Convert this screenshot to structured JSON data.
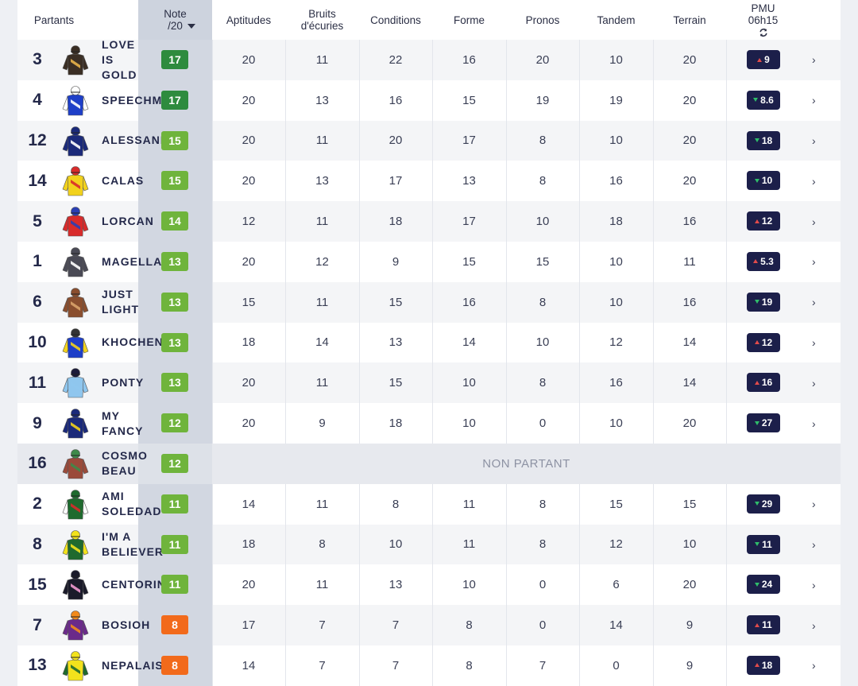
{
  "header": {
    "partants": "Partants",
    "note_line1": "Note",
    "note_line2": "/20",
    "aptitudes": "Aptitudes",
    "bruits_line1": "Bruits",
    "bruits_line2": "d'écuries",
    "conditions": "Conditions",
    "forme": "Forme",
    "pronos": "Pronos",
    "tandem": "Tandem",
    "terrain": "Terrain",
    "pmu_line1": "PMU",
    "pmu_line2": "06h15",
    "refresh_icon": "refresh-icon"
  },
  "non_partant_label": "NON PARTANT",
  "colors": {
    "note_dark_green": "#2e8b3e",
    "note_green": "#6fb43c",
    "note_orange": "#f26a1b",
    "cote_bg": "#1c1f4a",
    "trend_up": "#e24b4b",
    "trend_down": "#2fbd6a"
  },
  "rows": [
    {
      "num": "3",
      "name": "LOVE\nIS\nGOLD",
      "note": "17",
      "note_color": "#2e8b3e",
      "aptitudes": "20",
      "bruits": "11",
      "conditions": "22",
      "forme": "16",
      "pronos": "20",
      "tandem": "10",
      "terrain": "20",
      "cote": "9",
      "trend": "up",
      "silks": {
        "body": "#3a2e24",
        "pattern": "#e8b24a",
        "sleeve": "#3a2e24",
        "cap": "#3a2e24"
      }
    },
    {
      "num": "4",
      "name": "SPEECHMAKER",
      "note": "17",
      "note_color": "#2e8b3e",
      "aptitudes": "20",
      "bruits": "13",
      "conditions": "16",
      "forme": "15",
      "pronos": "19",
      "tandem": "19",
      "terrain": "20",
      "cote": "8.6",
      "trend": "down",
      "silks": {
        "body": "#1e3fc8",
        "pattern": "#ffffff",
        "sleeve": "#ffffff",
        "cap": "#ffffff"
      }
    },
    {
      "num": "12",
      "name": "ALESSANDRO",
      "note": "15",
      "note_color": "#6fb43c",
      "aptitudes": "20",
      "bruits": "11",
      "conditions": "20",
      "forme": "17",
      "pronos": "8",
      "tandem": "10",
      "terrain": "20",
      "cote": "18",
      "trend": "down",
      "silks": {
        "body": "#1b2a7a",
        "pattern": "#ffffff",
        "sleeve": "#1b2a7a",
        "cap": "#1b2a7a"
      }
    },
    {
      "num": "14",
      "name": "CALAS",
      "note": "15",
      "note_color": "#6fb43c",
      "aptitudes": "20",
      "bruits": "13",
      "conditions": "17",
      "forme": "13",
      "pronos": "8",
      "tandem": "16",
      "terrain": "20",
      "cote": "10",
      "trend": "down",
      "silks": {
        "body": "#f2d21c",
        "pattern": "#d82b2b",
        "sleeve": "#f2d21c",
        "cap": "#d82b2b"
      }
    },
    {
      "num": "5",
      "name": "LORCAN",
      "note": "14",
      "note_color": "#6fb43c",
      "aptitudes": "12",
      "bruits": "11",
      "conditions": "18",
      "forme": "17",
      "pronos": "10",
      "tandem": "18",
      "terrain": "16",
      "cote": "12",
      "trend": "up",
      "silks": {
        "body": "#d82b2b",
        "pattern": "#2a3fb4",
        "sleeve": "#d82b2b",
        "cap": "#2a3fb4"
      }
    },
    {
      "num": "1",
      "name": "MAGELLAN",
      "note": "13",
      "note_color": "#6fb43c",
      "aptitudes": "20",
      "bruits": "12",
      "conditions": "9",
      "forme": "15",
      "pronos": "15",
      "tandem": "10",
      "terrain": "11",
      "cote": "5.3",
      "trend": "up",
      "silks": {
        "body": "#4a4a55",
        "pattern": "#ffffff",
        "sleeve": "#4a4a55",
        "cap": "#4a4a55"
      }
    },
    {
      "num": "6",
      "name": "JUST\nLIGHT",
      "note": "13",
      "note_color": "#6fb43c",
      "aptitudes": "15",
      "bruits": "11",
      "conditions": "15",
      "forme": "16",
      "pronos": "8",
      "tandem": "10",
      "terrain": "16",
      "cote": "19",
      "trend": "down",
      "silks": {
        "body": "#8a4e2e",
        "pattern": "#d9a36a",
        "sleeve": "#8a4e2e",
        "cap": "#8a4e2e"
      }
    },
    {
      "num": "10",
      "name": "KHOCHENKO",
      "note": "13",
      "note_color": "#6fb43c",
      "aptitudes": "18",
      "bruits": "14",
      "conditions": "13",
      "forme": "14",
      "pronos": "10",
      "tandem": "12",
      "terrain": "14",
      "cote": "12",
      "trend": "up",
      "silks": {
        "body": "#1e3fc8",
        "pattern": "#f2d21c",
        "sleeve": "#f2d21c",
        "cap": "#333333"
      }
    },
    {
      "num": "11",
      "name": "PONTY",
      "note": "13",
      "note_color": "#6fb43c",
      "aptitudes": "20",
      "bruits": "11",
      "conditions": "15",
      "forme": "10",
      "pronos": "8",
      "tandem": "16",
      "terrain": "14",
      "cote": "16",
      "trend": "up",
      "silks": {
        "body": "#8fc6ee",
        "pattern": "#8fc6ee",
        "sleeve": "#8fc6ee",
        "cap": "#1b1b3a"
      }
    },
    {
      "num": "9",
      "name": "MY\nFANCY",
      "note": "12",
      "note_color": "#6fb43c",
      "aptitudes": "20",
      "bruits": "9",
      "conditions": "18",
      "forme": "10",
      "pronos": "0",
      "tandem": "10",
      "terrain": "20",
      "cote": "27",
      "trend": "down",
      "silks": {
        "body": "#1b2a7a",
        "pattern": "#f2d21c",
        "sleeve": "#1b2a7a",
        "cap": "#1b2a7a"
      }
    },
    {
      "num": "16",
      "name": "COSMO\nBEAU",
      "note": "12",
      "note_color": "#6fb43c",
      "non_partant": true,
      "silks": {
        "body": "#9a4a3a",
        "pattern": "#3e8a4a",
        "sleeve": "#9a4a3a",
        "cap": "#3e8a4a"
      }
    },
    {
      "num": "2",
      "name": "AMI\nSOLEDAD",
      "note": "11",
      "note_color": "#6fb43c",
      "aptitudes": "14",
      "bruits": "11",
      "conditions": "8",
      "forme": "11",
      "pronos": "8",
      "tandem": "15",
      "terrain": "15",
      "cote": "29",
      "trend": "down",
      "silks": {
        "body": "#1f6a2e",
        "pattern": "#d82b2b",
        "sleeve": "#ffffff",
        "cap": "#1f6a2e"
      }
    },
    {
      "num": "8",
      "name": "I'M A\nBELIEVER",
      "note": "11",
      "note_color": "#6fb43c",
      "aptitudes": "18",
      "bruits": "8",
      "conditions": "10",
      "forme": "11",
      "pronos": "8",
      "tandem": "12",
      "terrain": "10",
      "cote": "11",
      "trend": "down",
      "silks": {
        "body": "#1f6a2e",
        "pattern": "#f2e21c",
        "sleeve": "#f2e21c",
        "cap": "#f2e21c"
      }
    },
    {
      "num": "15",
      "name": "CENTORINO",
      "note": "11",
      "note_color": "#6fb43c",
      "aptitudes": "20",
      "bruits": "11",
      "conditions": "13",
      "forme": "10",
      "pronos": "0",
      "tandem": "6",
      "terrain": "20",
      "cote": "24",
      "trend": "down",
      "silks": {
        "body": "#1b1b2a",
        "pattern": "#f29ad0",
        "sleeve": "#1b1b2a",
        "cap": "#1b1b2a"
      }
    },
    {
      "num": "7",
      "name": "BOSIOH",
      "note": "8",
      "note_color": "#f26a1b",
      "aptitudes": "17",
      "bruits": "7",
      "conditions": "7",
      "forme": "8",
      "pronos": "0",
      "tandem": "14",
      "terrain": "9",
      "cote": "11",
      "trend": "up",
      "silks": {
        "body": "#6a2a8a",
        "pattern": "#f28a1c",
        "sleeve": "#6a2a8a",
        "cap": "#f28a1c"
      }
    },
    {
      "num": "13",
      "name": "NEPALAIS",
      "note": "8",
      "note_color": "#f26a1b",
      "aptitudes": "14",
      "bruits": "7",
      "conditions": "7",
      "forme": "8",
      "pronos": "7",
      "tandem": "0",
      "terrain": "9",
      "cote": "18",
      "trend": "up",
      "silks": {
        "body": "#f2e21c",
        "pattern": "#1f6a2e",
        "sleeve": "#1f6a2e",
        "cap": "#f2e21c"
      }
    }
  ]
}
